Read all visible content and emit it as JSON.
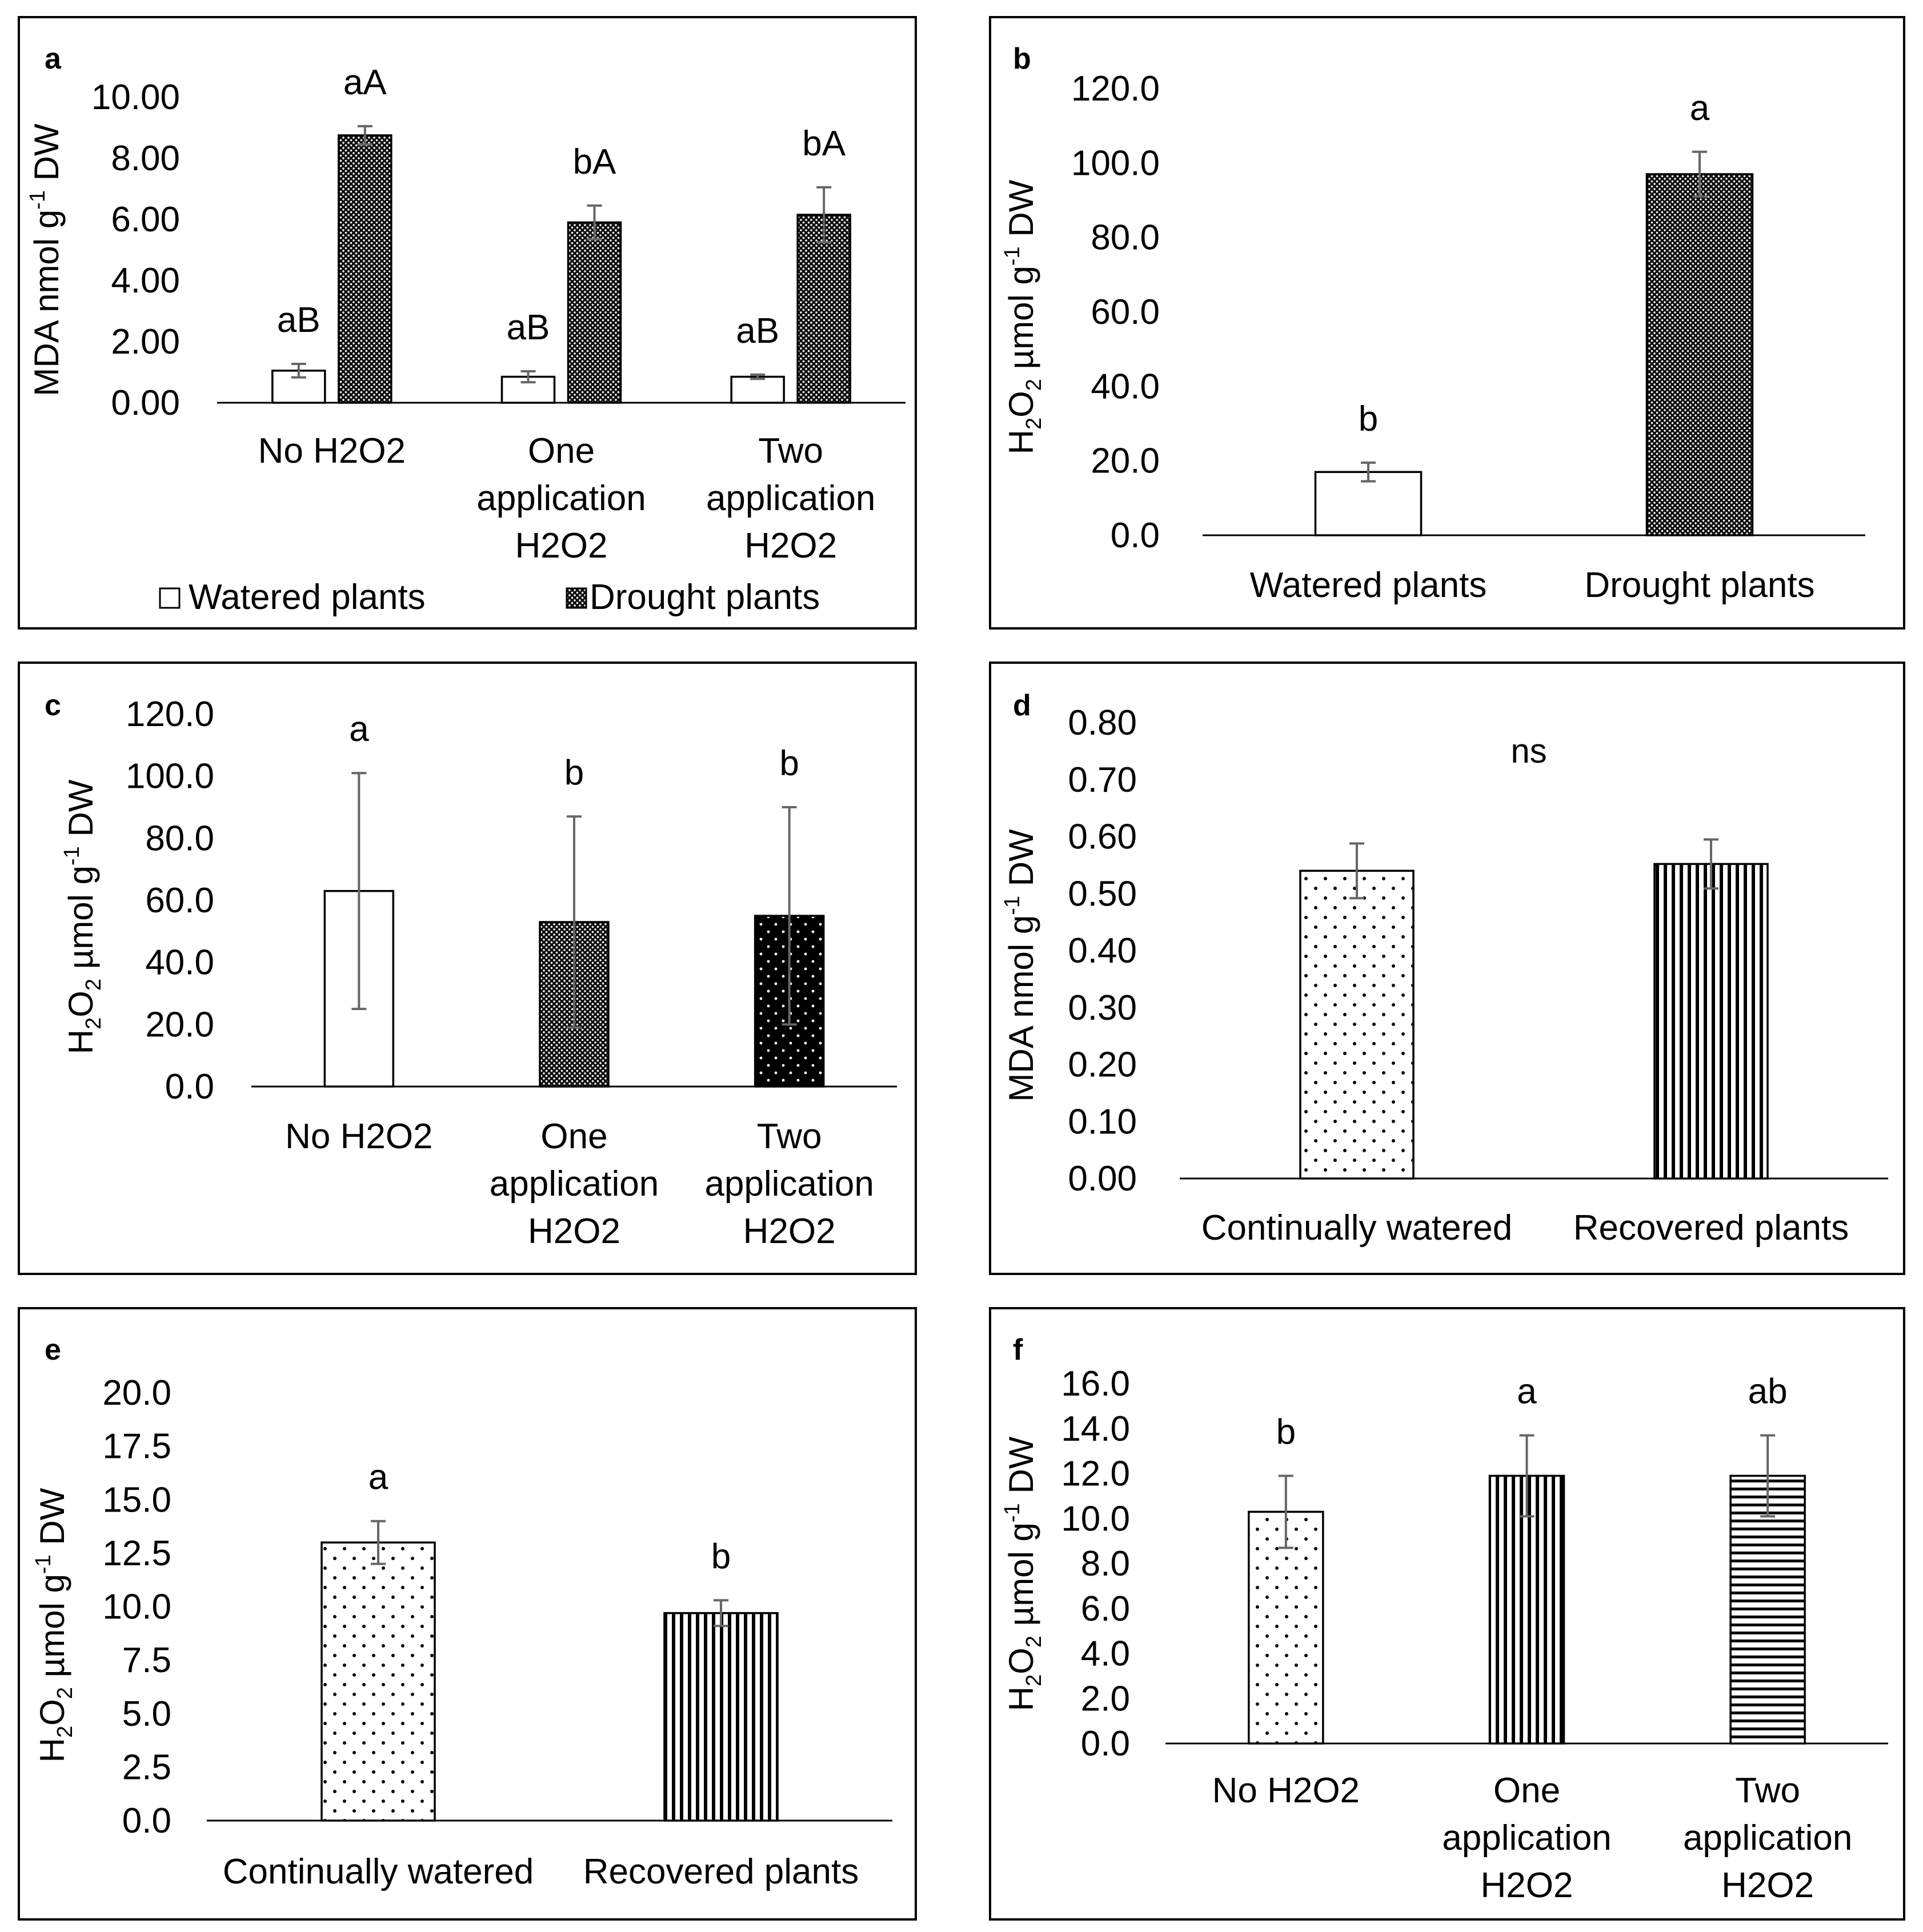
{
  "chart_data": [
    {
      "panel": "a",
      "type": "bar",
      "ylabel": "MDA nmol g",
      "ylabel_sup": "-1",
      "ylabel_tail": " DW",
      "yticks": [
        "0.00",
        "2.00",
        "4.00",
        "6.00",
        "8.00",
        "10.00"
      ],
      "ylim": [
        0,
        10
      ],
      "categories": [
        [
          "No H2O2"
        ],
        [
          "One",
          "application",
          "H2O2"
        ],
        [
          "Two",
          "application",
          "H2O2"
        ]
      ],
      "series": [
        {
          "name": "Watered plants",
          "pattern": "white",
          "values": [
            1.05,
            0.85,
            0.85
          ],
          "errors": [
            0.22,
            0.18,
            0.07
          ],
          "labels": [
            "aB",
            "aB",
            "aB"
          ]
        },
        {
          "name": "Drought plants",
          "pattern": "dense",
          "values": [
            8.75,
            5.9,
            6.15
          ],
          "errors": [
            0.3,
            0.55,
            0.9
          ],
          "labels": [
            "aA",
            "bA",
            "bA"
          ]
        }
      ],
      "legend": "bottom"
    },
    {
      "panel": "b",
      "type": "bar",
      "ylabel": "H",
      "ylabel_sub1": "2",
      "ylabel_mid": "O",
      "ylabel_sub2": "2",
      "ylabel_tail": " µmol g",
      "ylabel_sup": "-1",
      "ylabel_end": " DW",
      "yticks": [
        "0.0",
        "20.0",
        "40.0",
        "60.0",
        "80.0",
        "100.0",
        "120.0"
      ],
      "ylim": [
        0,
        120
      ],
      "categories": [
        [
          "Watered plants"
        ],
        [
          "Drought plants"
        ]
      ],
      "series": [
        {
          "values": [
            17.0,
            97.0
          ],
          "errors": [
            2.5,
            6.0
          ],
          "labels": [
            "b",
            "a"
          ],
          "patterns": [
            "white",
            "dense"
          ]
        }
      ]
    },
    {
      "panel": "c",
      "type": "bar",
      "ylabel": "H",
      "ylabel_sub1": "2",
      "ylabel_mid": "O",
      "ylabel_sub2": "2",
      "ylabel_tail": " µmol g",
      "ylabel_sup": "-1",
      "ylabel_end": " DW",
      "yticks": [
        "0.0",
        "20.0",
        "40.0",
        "60.0",
        "80.0",
        "100.0",
        "120.0"
      ],
      "ylim": [
        0,
        120
      ],
      "categories": [
        [
          "No H2O2"
        ],
        [
          "One",
          "application",
          "H2O2"
        ],
        [
          "Two",
          "application",
          "H2O2"
        ]
      ],
      "series": [
        {
          "values": [
            63.0,
            53.0,
            55.0
          ],
          "errors": [
            38.0,
            34.0,
            35.0
          ],
          "labels": [
            "a",
            "b",
            "b"
          ],
          "patterns": [
            "white",
            "dense",
            "black-dots"
          ]
        }
      ]
    },
    {
      "panel": "d",
      "type": "bar",
      "ylabel": "MDA nmol g",
      "ylabel_sup": "-1",
      "ylabel_tail": " DW",
      "yticks": [
        "0.00",
        "0.10",
        "0.20",
        "0.30",
        "0.40",
        "0.50",
        "0.60",
        "0.70",
        "0.80"
      ],
      "ylim": [
        0,
        0.8
      ],
      "categories": [
        [
          "Continually watered"
        ],
        [
          "Recovered plants"
        ]
      ],
      "series": [
        {
          "values": [
            0.54,
            0.552
          ],
          "errors": [
            0.048,
            0.043
          ],
          "labels": [
            "",
            ""
          ],
          "patterns": [
            "sparse-dots",
            "vlines"
          ]
        }
      ],
      "annotation": "ns"
    },
    {
      "panel": "e",
      "type": "bar",
      "ylabel": "H",
      "ylabel_sub1": "2",
      "ylabel_mid": "O",
      "ylabel_sub2": "2",
      "ylabel_tail": " µmol g",
      "ylabel_sup": "-1",
      "ylabel_end": " DW",
      "yticks": [
        "0.0",
        "2.5",
        "5.0",
        "7.5",
        "10.0",
        "12.5",
        "15.0",
        "17.5",
        "20.0"
      ],
      "ylim": [
        0,
        20
      ],
      "categories": [
        [
          "Continually watered"
        ],
        [
          "Recovered plants"
        ]
      ],
      "series": [
        {
          "values": [
            13.0,
            9.7
          ],
          "errors": [
            1.0,
            0.6
          ],
          "labels": [
            "a",
            "b"
          ],
          "patterns": [
            "sparse-dots",
            "vlines"
          ]
        }
      ]
    },
    {
      "panel": "f",
      "type": "bar",
      "ylabel": "H",
      "ylabel_sub1": "2",
      "ylabel_mid": "O",
      "ylabel_sub2": "2",
      "ylabel_tail": " µmol g",
      "ylabel_sup": "-1",
      "ylabel_end": " DW",
      "yticks": [
        "0.0",
        "2.0",
        "4.0",
        "6.0",
        "8.0",
        "10.0",
        "12.0",
        "14.0",
        "16.0"
      ],
      "ylim": [
        0,
        16
      ],
      "categories": [
        [
          "No H2O2"
        ],
        [
          "One",
          "application",
          "H2O2"
        ],
        [
          "Two",
          "application",
          "H2O2"
        ]
      ],
      "series": [
        {
          "values": [
            10.3,
            11.9,
            11.9
          ],
          "errors": [
            1.6,
            1.8,
            1.8
          ],
          "labels": [
            "b",
            "a",
            "ab"
          ],
          "patterns": [
            "sparse-dots",
            "vlines",
            "hlines"
          ]
        }
      ]
    }
  ]
}
